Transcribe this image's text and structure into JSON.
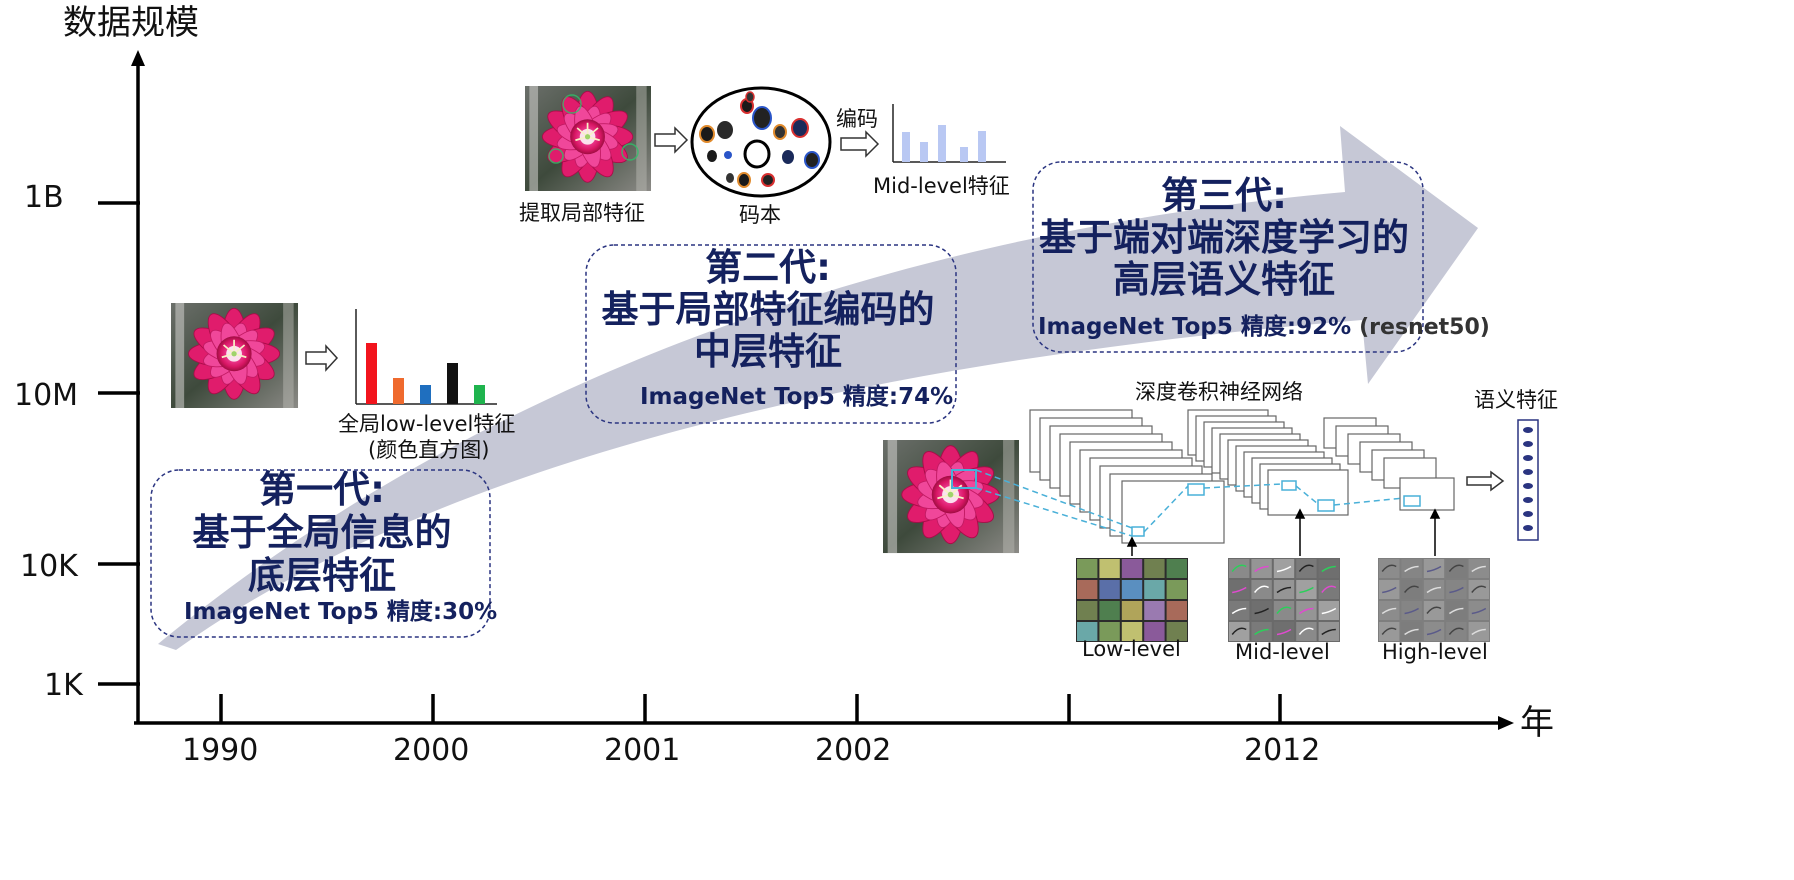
{
  "axes": {
    "y_title": "数据规模",
    "x_title": "年",
    "y_ticks": [
      "1B",
      "10M",
      "10K",
      "1K"
    ],
    "x_ticks": [
      "1990",
      "2000",
      "2001",
      "2002",
      "",
      "2012"
    ]
  },
  "gen1": {
    "title_line1": "第一代:",
    "title_line2": "基于全局信息的",
    "title_line3": "底层特征",
    "accuracy": "ImageNet Top5 精度:30%",
    "caption_line1": "全局low-level特征",
    "caption_line2": "(颜色直方图)"
  },
  "gen2": {
    "title_line1": "第二代:",
    "title_line2": "基于局部特征编码的",
    "title_line3": "中层特征",
    "accuracy": "ImageNet Top5 精度:74%",
    "extract_label": "提取局部特征",
    "codebook_label": "码本",
    "encode_label": "编码",
    "midlevel_label": "Mid-level特征"
  },
  "gen3": {
    "title_line1": "第三代:",
    "title_line2": "基于端对端深度学习的",
    "title_line3": "高层语义特征",
    "accuracy": "ImageNet Top5 精度:92%",
    "accuracy_note": "(resnet50)",
    "cnn_label": "深度卷积神经网络",
    "semantic_label": "语义特征",
    "low_label": "Low-level",
    "mid_label": "Mid-level",
    "high_label": "High-level"
  },
  "colors": {
    "title_navy": "#14215e",
    "arrow_gray": "#c6c8d6",
    "flower_pink": "#e0196a",
    "hist_red": "#f2141d",
    "hist_orange": "#ef6a2e",
    "hist_blue": "#1f6fbf",
    "hist_black": "#111111",
    "hist_green": "#1fb44e",
    "mid_hist_blue": "#b9c8f3"
  },
  "icons": {
    "flower": "flower-photo",
    "codebook": "codebook-ellipse",
    "cnn": "cnn-layer-stack",
    "semantic_vector": "feature-vector-icon"
  }
}
